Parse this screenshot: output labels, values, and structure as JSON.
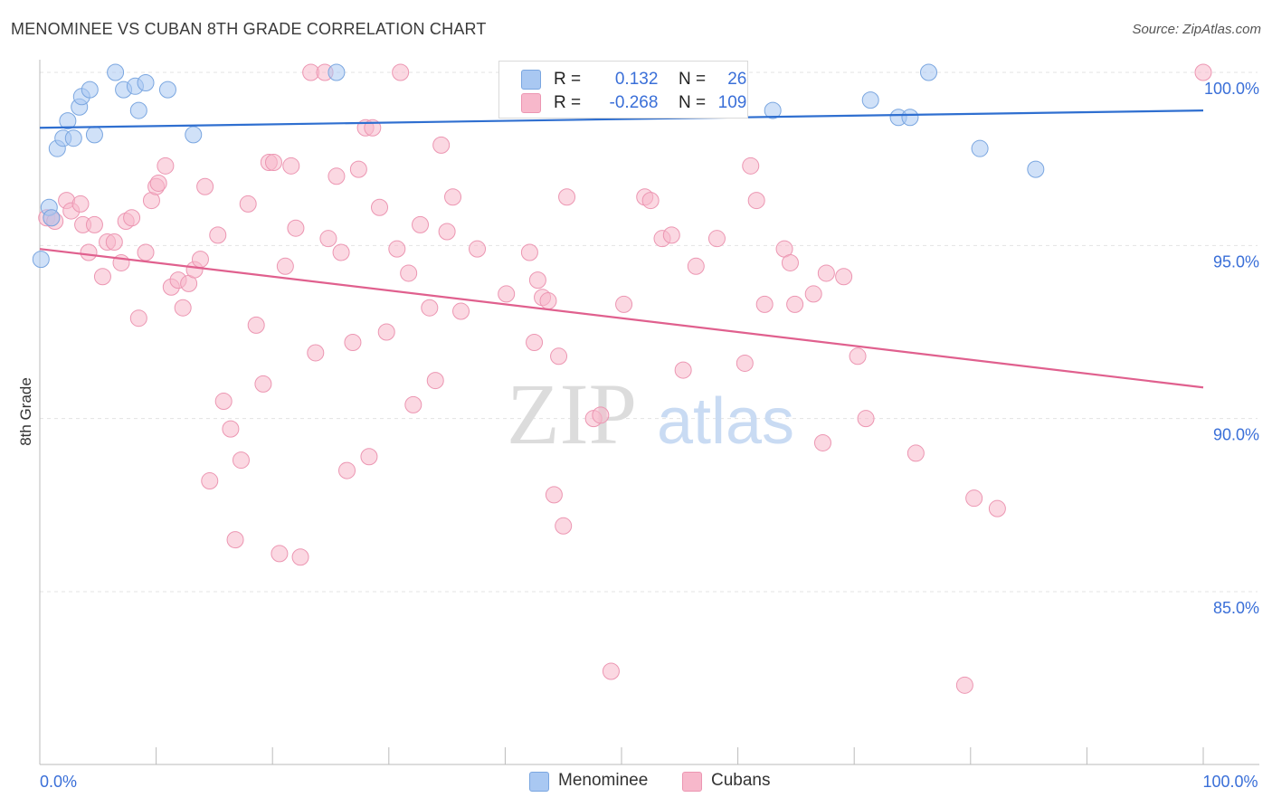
{
  "header": {
    "title": "MENOMINEE VS CUBAN 8TH GRADE CORRELATION CHART",
    "source": "Source: ZipAtlas.com"
  },
  "legend": {
    "rows": [
      {
        "r_label": "R =",
        "r_value": "0.132",
        "n_label": "N =",
        "n_value": "26"
      },
      {
        "r_label": "R =",
        "r_value": "-0.268",
        "n_label": "N =",
        "n_value": "109"
      }
    ]
  },
  "bottom_legend": [
    "Menominee",
    "Cubans"
  ],
  "watermark": {
    "zip": "ZIP",
    "atlas": "atlas"
  },
  "colors": {
    "menominee_fill": "#a9c8f2",
    "menominee_stroke": "#7aa6e0",
    "menominee_line": "#2f6fd0",
    "cubans_fill": "#f7b8cb",
    "cubans_stroke": "#ec96b2",
    "cubans_line": "#e0608e",
    "tick_label": "#3a6fd8",
    "grid": "#e3e3e3"
  },
  "chart_data": {
    "type": "scatter",
    "title": "MENOMINEE VS CUBAN 8TH GRADE CORRELATION CHART",
    "xlabel": "",
    "ylabel": "8th Grade",
    "xlim": [
      0,
      100
    ],
    "ylim": [
      80.5,
      101.0
    ],
    "x_tick_labels": [
      {
        "value": 0,
        "label": "0.0%"
      },
      {
        "value": 100,
        "label": "100.0%"
      }
    ],
    "y_ticks": [
      {
        "value": 100,
        "label": "100.0%"
      },
      {
        "value": 95,
        "label": "95.0%"
      },
      {
        "value": 90,
        "label": "90.0%"
      },
      {
        "value": 85,
        "label": "85.0%"
      }
    ],
    "grid": true,
    "legend_position": "top-center",
    "series": [
      {
        "name": "Menominee",
        "r": 0.132,
        "n": 26,
        "trend": {
          "x": [
            0,
            100
          ],
          "y": [
            98.4,
            98.9
          ]
        },
        "points": [
          [
            0.1,
            94.6
          ],
          [
            0.8,
            96.1
          ],
          [
            1.0,
            95.8
          ],
          [
            1.5,
            97.8
          ],
          [
            2.0,
            98.1
          ],
          [
            2.4,
            98.6
          ],
          [
            2.9,
            98.1
          ],
          [
            3.4,
            99.0
          ],
          [
            3.6,
            99.3
          ],
          [
            4.3,
            99.5
          ],
          [
            4.7,
            98.2
          ],
          [
            6.5,
            100.0
          ],
          [
            7.2,
            99.5
          ],
          [
            8.2,
            99.6
          ],
          [
            8.5,
            98.9
          ],
          [
            9.1,
            99.7
          ],
          [
            11.0,
            99.5
          ],
          [
            13.2,
            98.2
          ],
          [
            25.5,
            100.0
          ],
          [
            63.0,
            98.9
          ],
          [
            71.4,
            99.2
          ],
          [
            73.8,
            98.7
          ],
          [
            74.8,
            98.7
          ],
          [
            76.4,
            100.0
          ],
          [
            80.8,
            97.8
          ],
          [
            85.6,
            97.2
          ]
        ]
      },
      {
        "name": "Cubans",
        "r": -0.268,
        "n": 109,
        "trend": {
          "x": [
            0,
            100
          ],
          "y": [
            94.9,
            90.9
          ]
        },
        "points": [
          [
            0.6,
            95.8
          ],
          [
            1.0,
            95.8
          ],
          [
            1.3,
            95.7
          ],
          [
            2.3,
            96.3
          ],
          [
            2.7,
            96.0
          ],
          [
            3.5,
            96.2
          ],
          [
            3.7,
            95.6
          ],
          [
            4.2,
            94.8
          ],
          [
            4.7,
            95.6
          ],
          [
            5.4,
            94.1
          ],
          [
            5.8,
            95.1
          ],
          [
            6.4,
            95.1
          ],
          [
            7.0,
            94.5
          ],
          [
            7.4,
            95.7
          ],
          [
            7.9,
            95.8
          ],
          [
            8.5,
            92.9
          ],
          [
            9.1,
            94.8
          ],
          [
            9.6,
            96.3
          ],
          [
            10.0,
            96.7
          ],
          [
            10.2,
            96.8
          ],
          [
            10.8,
            97.3
          ],
          [
            11.3,
            93.8
          ],
          [
            11.9,
            94.0
          ],
          [
            12.3,
            93.2
          ],
          [
            12.8,
            93.9
          ],
          [
            13.3,
            94.3
          ],
          [
            13.8,
            94.6
          ],
          [
            14.2,
            96.7
          ],
          [
            14.6,
            88.2
          ],
          [
            15.3,
            95.3
          ],
          [
            15.8,
            90.5
          ],
          [
            16.4,
            89.7
          ],
          [
            16.8,
            86.5
          ],
          [
            17.3,
            88.8
          ],
          [
            17.9,
            96.2
          ],
          [
            18.6,
            92.7
          ],
          [
            19.2,
            91.0
          ],
          [
            19.7,
            97.4
          ],
          [
            20.1,
            97.4
          ],
          [
            20.6,
            86.1
          ],
          [
            21.1,
            94.4
          ],
          [
            21.6,
            97.3
          ],
          [
            22.0,
            95.5
          ],
          [
            22.4,
            86.0
          ],
          [
            23.3,
            100.0
          ],
          [
            23.7,
            91.9
          ],
          [
            24.5,
            100.0
          ],
          [
            24.8,
            95.2
          ],
          [
            25.5,
            97.0
          ],
          [
            25.9,
            94.8
          ],
          [
            26.4,
            88.5
          ],
          [
            26.9,
            92.2
          ],
          [
            27.4,
            97.2
          ],
          [
            28.0,
            98.4
          ],
          [
            28.3,
            88.9
          ],
          [
            28.6,
            98.4
          ],
          [
            29.2,
            96.1
          ],
          [
            29.8,
            92.5
          ],
          [
            30.7,
            94.9
          ],
          [
            31.0,
            100.0
          ],
          [
            31.7,
            94.2
          ],
          [
            32.1,
            90.4
          ],
          [
            32.7,
            95.6
          ],
          [
            33.5,
            93.2
          ],
          [
            34.0,
            91.1
          ],
          [
            34.5,
            97.9
          ],
          [
            35.0,
            95.4
          ],
          [
            35.5,
            96.4
          ],
          [
            36.2,
            93.1
          ],
          [
            37.6,
            94.9
          ],
          [
            40.1,
            93.6
          ],
          [
            42.1,
            94.8
          ],
          [
            42.5,
            92.2
          ],
          [
            42.8,
            94.0
          ],
          [
            43.2,
            93.5
          ],
          [
            43.7,
            93.4
          ],
          [
            44.2,
            87.8
          ],
          [
            44.6,
            91.8
          ],
          [
            45.0,
            86.9
          ],
          [
            45.3,
            96.4
          ],
          [
            47.6,
            90.0
          ],
          [
            48.2,
            90.1
          ],
          [
            49.1,
            82.7
          ],
          [
            50.2,
            93.3
          ],
          [
            52.0,
            96.4
          ],
          [
            52.5,
            96.3
          ],
          [
            53.5,
            95.2
          ],
          [
            54.3,
            95.3
          ],
          [
            55.3,
            91.4
          ],
          [
            56.4,
            94.4
          ],
          [
            58.2,
            95.2
          ],
          [
            60.6,
            91.6
          ],
          [
            61.1,
            97.3
          ],
          [
            61.6,
            96.3
          ],
          [
            62.3,
            93.3
          ],
          [
            64.0,
            94.9
          ],
          [
            64.5,
            94.5
          ],
          [
            64.9,
            93.3
          ],
          [
            66.5,
            93.6
          ],
          [
            67.3,
            89.3
          ],
          [
            67.6,
            94.2
          ],
          [
            69.1,
            94.1
          ],
          [
            70.3,
            91.8
          ],
          [
            71.0,
            90.0
          ],
          [
            75.3,
            89.0
          ],
          [
            80.3,
            87.7
          ],
          [
            82.3,
            87.4
          ],
          [
            79.5,
            82.3
          ],
          [
            100.0,
            100.0
          ]
        ]
      }
    ]
  }
}
